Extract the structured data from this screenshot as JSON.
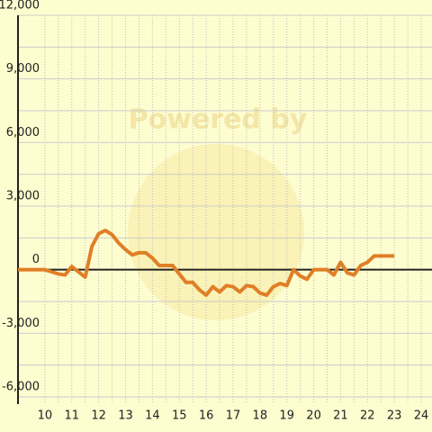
{
  "chart_data": {
    "type": "line",
    "watermark": "Powered by",
    "x": [
      9,
      10,
      10.25,
      10.5,
      10.75,
      11,
      11.25,
      11.5,
      11.75,
      12,
      12.25,
      12.5,
      12.75,
      13,
      13.25,
      13.5,
      13.75,
      14,
      14.25,
      14.5,
      14.75,
      15,
      15.25,
      15.5,
      15.75,
      16,
      16.25,
      16.5,
      16.75,
      17,
      17.25,
      17.5,
      17.75,
      18,
      18.25,
      18.5,
      18.75,
      19,
      19.25,
      19.5,
      19.75,
      20,
      20.25,
      20.5,
      20.75,
      21,
      21.25,
      21.5,
      21.75,
      22,
      22.25,
      22.5,
      22.75,
      23
    ],
    "series": [
      {
        "color": "#e07f26",
        "values": [
          0,
          0,
          -100,
          -200,
          -250,
          150,
          -100,
          -350,
          1100,
          1700,
          1850,
          1650,
          1250,
          950,
          700,
          800,
          800,
          550,
          200,
          200,
          200,
          -200,
          -600,
          -600,
          -950,
          -1200,
          -800,
          -1050,
          -750,
          -800,
          -1050,
          -750,
          -800,
          -1100,
          -1200,
          -800,
          -650,
          -750,
          0,
          -300,
          -450,
          0,
          0,
          0,
          -250,
          350,
          -150,
          -250,
          200,
          350,
          650,
          650,
          650,
          650
        ]
      }
    ],
    "xlim": [
      9,
      24.4
    ],
    "ylim": [
      -6000,
      12000
    ],
    "xticks": [
      10,
      11,
      12,
      13,
      14,
      15,
      16,
      17,
      18,
      19,
      20,
      21,
      22,
      23,
      24
    ],
    "yticks": [
      {
        "value": -6000,
        "label": "-6,000"
      },
      {
        "value": -3000,
        "label": "-3,000"
      },
      0,
      {
        "value": 3000,
        "label": "3,000"
      },
      {
        "value": 6000,
        "label": "6,000"
      },
      {
        "value": 9000,
        "label": "9,000"
      },
      {
        "value": 12000,
        "label": "12,000"
      }
    ],
    "grid": true
  }
}
